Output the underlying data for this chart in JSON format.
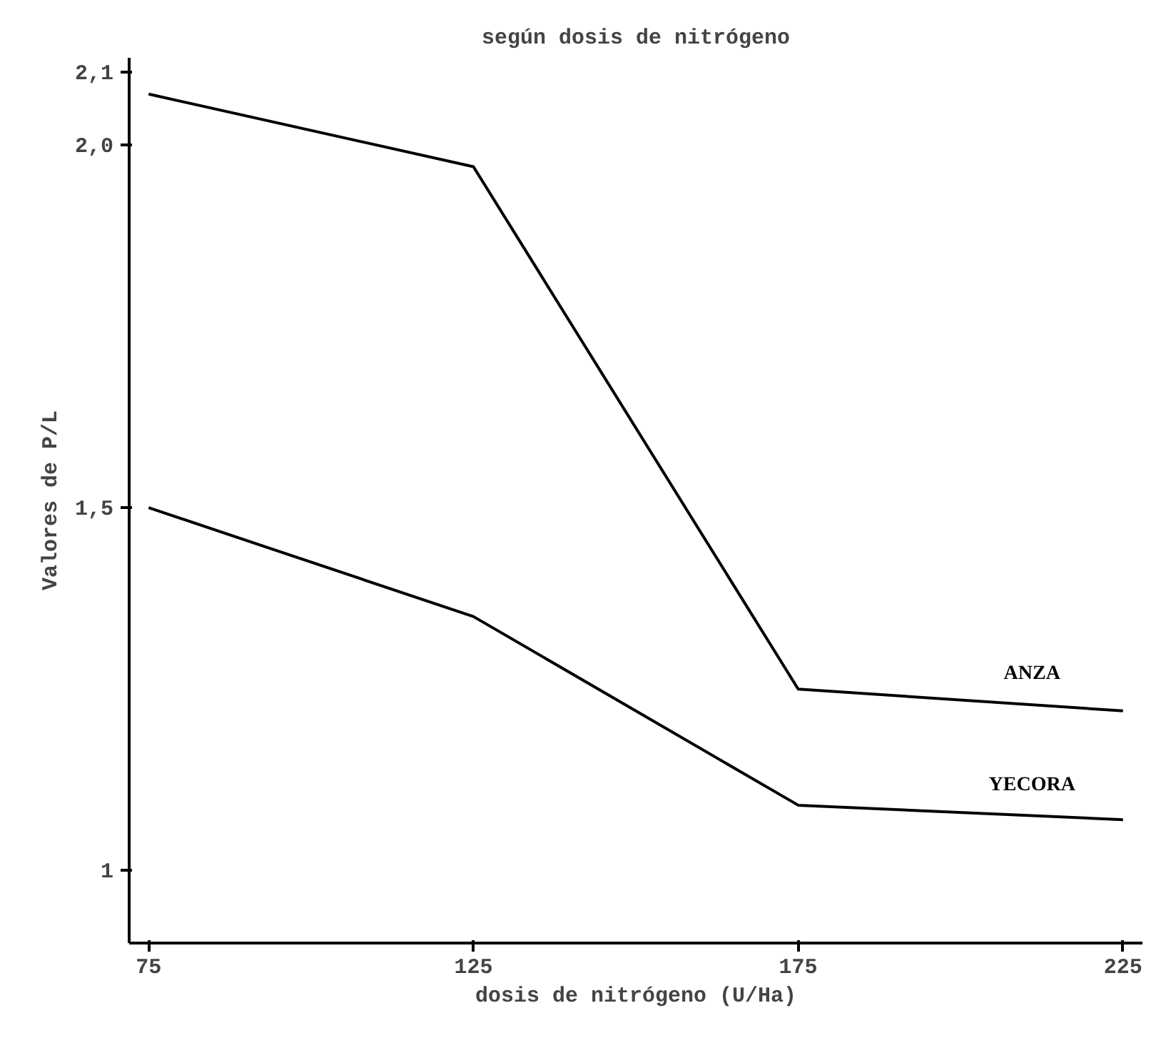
{
  "chart_data": {
    "type": "line",
    "title": "según dosis de nitrógeno",
    "xlabel": "dosis de nitrógeno (U/Ha)",
    "ylabel": "Valores de P/L",
    "x": [
      75,
      125,
      175,
      225
    ],
    "series": [
      {
        "name": "ANZA",
        "color": "#000000",
        "values": [
          2.07,
          1.97,
          1.25,
          1.22
        ]
      },
      {
        "name": "YECORA",
        "color": "#000000",
        "values": [
          1.5,
          1.35,
          1.09,
          1.07
        ]
      }
    ],
    "xlim": [
      72,
      228
    ],
    "ylim": [
      0.9,
      2.12
    ],
    "xticks": [
      75,
      125,
      175,
      225
    ],
    "yticks": [
      1,
      {
        "value": 1.5,
        "label": "1,5"
      },
      {
        "value": 2.0,
        "label": "2,0"
      },
      {
        "value": 2.1,
        "label": "2,1"
      }
    ],
    "grid": false,
    "legend": false,
    "marker": "none",
    "line_style": "solid"
  }
}
